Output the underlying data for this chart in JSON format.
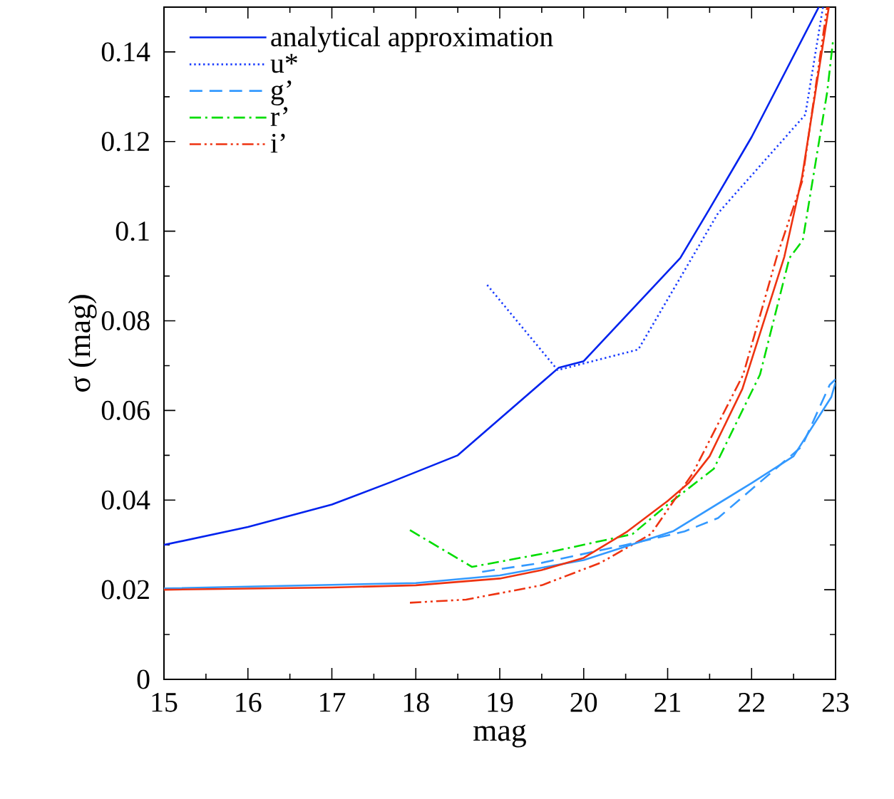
{
  "chart_data": {
    "type": "line",
    "xlabel": "mag",
    "ylabel": "σ (mag)",
    "xlim": [
      15,
      23
    ],
    "ylim": [
      0,
      0.15
    ],
    "xticks": [
      15,
      16,
      17,
      18,
      19,
      20,
      21,
      22,
      23
    ],
    "yticks": [
      0,
      0.02,
      0.04,
      0.06,
      0.08,
      0.1,
      0.12,
      0.14
    ],
    "legend": "top left",
    "grid": false,
    "marker": "none",
    "series": [
      {
        "name": "analytical approximation",
        "color": "#0022ee",
        "line_style": "solid",
        "x": [
          15,
          16,
          17,
          17.7,
          18.5,
          19.7,
          20,
          20.9,
          21.15,
          21.5,
          22,
          22.8
        ],
        "values": [
          0.03,
          0.034,
          0.039,
          0.044,
          0.05,
          0.0695,
          0.071,
          0.089,
          0.094,
          0.105,
          0.121,
          0.15
        ]
      },
      {
        "name": "u*",
        "color": "#1a3cff",
        "line_style": "dotted",
        "x": [
          18.85,
          19.69,
          20.65,
          21.6,
          22.64,
          22.85
        ],
        "values": [
          0.088,
          0.069,
          0.0736,
          0.104,
          0.126,
          0.15
        ]
      },
      {
        "name": "g’",
        "color": "#3399ff",
        "line_style": "dashed",
        "x": [
          18.79,
          19.5,
          20.5,
          21.2,
          21.6,
          22.6,
          22.93,
          23
        ],
        "values": [
          0.024,
          0.026,
          0.03,
          0.033,
          0.036,
          0.052,
          0.0657,
          0.067
        ]
      },
      {
        "name": "r’",
        "color": "#00dd00",
        "line_style": "dashdot",
        "x": [
          17.93,
          18.67,
          19.5,
          20.58,
          21.0,
          21.55,
          22.1,
          22.45,
          22.61,
          22.9,
          22.97
        ],
        "values": [
          0.0333,
          0.0251,
          0.028,
          0.0324,
          0.039,
          0.047,
          0.068,
          0.094,
          0.098,
          0.131,
          0.1425
        ]
      },
      {
        "name": "i’",
        "color": "#ee3311",
        "line_style": "dashdotdot",
        "x": [
          17.93,
          18.6,
          19.5,
          20.2,
          20.8,
          21.3,
          21.9,
          22.3,
          22.6,
          22.9
        ],
        "values": [
          0.0171,
          0.0178,
          0.021,
          0.026,
          0.0324,
          0.046,
          0.068,
          0.0943,
          0.111,
          0.15
        ]
      },
      {
        "color": "#3399ff",
        "line_style": "solid",
        "x": [
          15,
          17,
          18,
          19,
          20,
          21.07,
          22,
          22.5,
          22.95,
          23
        ],
        "values": [
          0.0203,
          0.0211,
          0.0215,
          0.0232,
          0.0266,
          0.0331,
          0.0438,
          0.0498,
          0.063,
          0.0663
        ]
      },
      {
        "color": "#ee3311",
        "line_style": "solid",
        "x": [
          15,
          17,
          18,
          19,
          19.5,
          20,
          20.52,
          21,
          21.25,
          21.5,
          21.89,
          22.39,
          22.6,
          22.92
        ],
        "values": [
          0.02,
          0.0205,
          0.021,
          0.0225,
          0.0244,
          0.0271,
          0.033,
          0.0398,
          0.0438,
          0.0498,
          0.0648,
          0.0943,
          0.112,
          0.15
        ]
      }
    ]
  }
}
